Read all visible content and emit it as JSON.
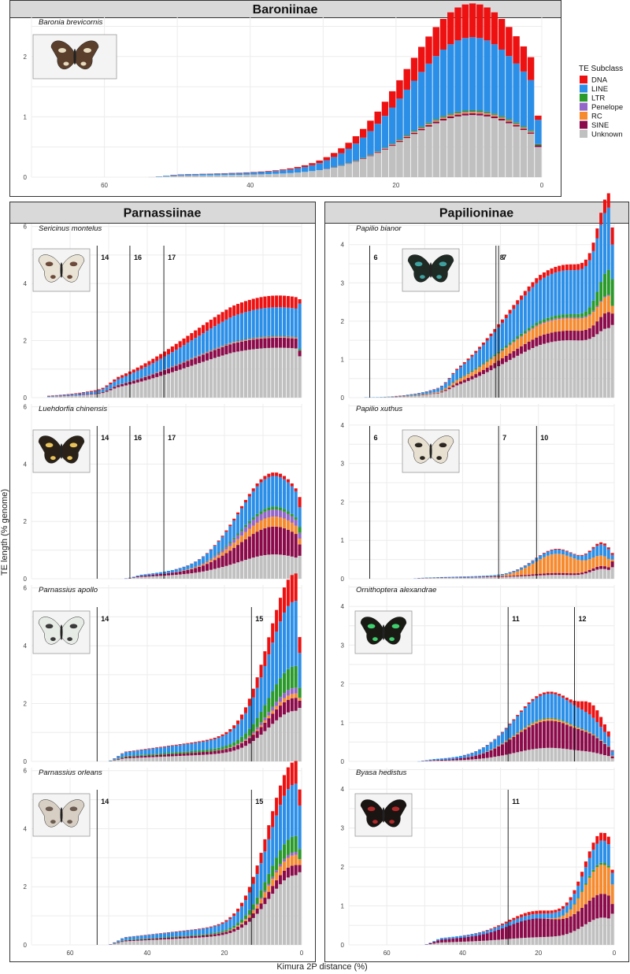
{
  "figure": {
    "ylabel": "TE length (% genome)",
    "xlabel": "Kimura 2P distance (%)"
  },
  "legend": {
    "title": "TE Subclass",
    "items": [
      {
        "name": "DNA",
        "color": "#ee1111"
      },
      {
        "name": "LINE",
        "color": "#2b8fe8"
      },
      {
        "name": "LTR",
        "color": "#2a9a2a"
      },
      {
        "name": "Penelope",
        "color": "#9366c9"
      },
      {
        "name": "RC",
        "color": "#f58a2f"
      },
      {
        "name": "SINE",
        "color": "#8b0a4a"
      },
      {
        "name": "Unknown",
        "color": "#c0c0c0"
      }
    ]
  },
  "groups": [
    {
      "title": "Baroniinae"
    },
    {
      "title": "Parnassiinae"
    },
    {
      "title": "Papilioninae"
    }
  ],
  "chart_data": [
    {
      "type": "bar",
      "stacked": true,
      "species": "Baronia brevicornis",
      "x_axis": "reversed",
      "xlim": [
        70,
        0
      ],
      "xticks": [
        60,
        40,
        20,
        0
      ],
      "ylim": [
        0,
        2.65
      ],
      "yticks": [
        0,
        1,
        2
      ],
      "grid": true,
      "divergence_lines": [],
      "peaks": [
        {
          "at": 9.5,
          "width": 9,
          "DNA": 0.55,
          "LINE": 1.15,
          "LTR": 0.02,
          "Penelope": 0.01,
          "RC": 0.02,
          "SINE": 0.03,
          "Unknown": 0.95
        }
      ],
      "plateaus": [
        {
          "from": 50,
          "to": 14,
          "DNA": 0.01,
          "LINE": 0.06,
          "Unknown": 0.08
        }
      ],
      "last_bar": {
        "DNA": 0.07,
        "LINE": 0.4,
        "LTR": 0.02,
        "SINE": 0.03,
        "Unknown": 0.5
      }
    },
    {
      "type": "bar",
      "stacked": true,
      "species": "Sericinus montelus",
      "x_axis": "reversed",
      "xlim": [
        70,
        0
      ],
      "xticks": [
        60,
        40,
        20,
        0
      ],
      "ylim": [
        0,
        6.1
      ],
      "yticks": [
        0,
        2,
        4,
        6
      ],
      "grid": true,
      "divergence_lines": [
        {
          "x": 53,
          "label": "14"
        },
        {
          "x": 44.5,
          "label": "16"
        },
        {
          "x": 35.7,
          "label": "17"
        }
      ],
      "peaks": [
        {
          "at": 6,
          "width": 22,
          "DNA": 0.35,
          "LINE": 0.8,
          "LTR": 0.02,
          "Penelope": 0.03,
          "RC": 0.02,
          "SINE": 0.25,
          "Unknown": 1.25
        }
      ],
      "plateaus": [
        {
          "from": 48,
          "to": 18,
          "DNA": 0.06,
          "LINE": 0.2,
          "SINE": 0.1,
          "Unknown": 0.5
        }
      ],
      "last_bar": {
        "DNA": 0.15,
        "LINE": 1.6,
        "LTR": 0.05,
        "SINE": 0.2,
        "Unknown": 1.45
      }
    },
    {
      "type": "bar",
      "stacked": true,
      "species": "Papilio bianor",
      "x_axis": "reversed",
      "xlim": [
        70,
        0
      ],
      "xticks": [
        60,
        40,
        20,
        0
      ],
      "ylim": [
        0,
        4.55
      ],
      "yticks": [
        0,
        1,
        2,
        3,
        4
      ],
      "grid": true,
      "divergence_lines": [
        {
          "x": 64.5,
          "label": "6"
        },
        {
          "x": 31.2,
          "label": "8"
        },
        {
          "x": 30.5,
          "label": "7"
        }
      ],
      "peaks": [
        {
          "at": 12,
          "width": 16,
          "DNA": 0.12,
          "LINE": 0.85,
          "LTR": 0.08,
          "Penelope": 0.03,
          "RC": 0.22,
          "SINE": 0.15,
          "Unknown": 1.15
        },
        {
          "at": 1,
          "width": 3,
          "DNA": 0.25,
          "LINE": 0.65,
          "LTR": 0.6,
          "RC": 0.15,
          "SINE": 0.2,
          "Unknown": 0.55
        }
      ],
      "plateaus": [
        {
          "from": 42,
          "to": 20,
          "DNA": 0.03,
          "LINE": 0.3,
          "RC": 0.1,
          "SINE": 0.1,
          "Unknown": 0.35
        }
      ],
      "last_bar": {
        "DNA": 0.45,
        "LINE": 0.9,
        "LTR": 0.7,
        "RC": 0.2,
        "SINE": 0.3,
        "Unknown": 1.9
      }
    },
    {
      "type": "bar",
      "stacked": true,
      "species": "Luehdorfia chinensis",
      "x_axis": "reversed",
      "xlim": [
        70,
        0
      ],
      "xticks": [
        60,
        40,
        20,
        0
      ],
      "ylim": [
        0,
        6.1
      ],
      "yticks": [
        0,
        2,
        4,
        6
      ],
      "grid": true,
      "divergence_lines": [
        {
          "x": 53,
          "label": "14"
        },
        {
          "x": 44.5,
          "label": "16"
        },
        {
          "x": 35.7,
          "label": "17"
        }
      ],
      "peaks": [
        {
          "at": 7,
          "width": 9,
          "DNA": 0.12,
          "LINE": 0.95,
          "LTR": 0.1,
          "Penelope": 0.25,
          "RC": 0.35,
          "SINE": 0.85,
          "Unknown": 0.65
        }
      ],
      "plateaus": [
        {
          "from": 42,
          "to": 22,
          "LINE": 0.12,
          "SINE": 0.12,
          "Unknown": 0.2
        }
      ],
      "last_bar": {
        "DNA": 0.35,
        "LINE": 0.7,
        "LTR": 0.2,
        "Penelope": 0.2,
        "RC": 0.2,
        "SINE": 0.4,
        "Unknown": 0.8
      }
    },
    {
      "type": "bar",
      "stacked": true,
      "species": "Papilio xuthus",
      "x_axis": "reversed",
      "xlim": [
        70,
        0
      ],
      "xticks": [
        60,
        40,
        20,
        0
      ],
      "ylim": [
        0,
        4.55
      ],
      "yticks": [
        0,
        1,
        2,
        3,
        4
      ],
      "grid": true,
      "divergence_lines": [
        {
          "x": 64.5,
          "label": "6"
        },
        {
          "x": 30.5,
          "label": "7"
        },
        {
          "x": 20.5,
          "label": "10"
        }
      ],
      "peaks": [
        {
          "at": 15,
          "width": 6,
          "DNA": 0.02,
          "LINE": 0.08,
          "RC": 0.5,
          "SINE": 0.03,
          "Unknown": 0.05
        },
        {
          "at": 3,
          "width": 3,
          "DNA": 0.05,
          "LINE": 0.25,
          "RC": 0.2,
          "SINE": 0.05,
          "Unknown": 0.2
        }
      ],
      "plateaus": [
        {
          "from": 50,
          "to": 25,
          "LINE": 0.03,
          "SINE": 0.02,
          "Unknown": 0.05
        }
      ],
      "last_bar": {
        "DNA": 0.05,
        "LINE": 0.12,
        "RC": 0.05,
        "SINE": 0.15,
        "Unknown": 0.3
      }
    },
    {
      "type": "bar",
      "stacked": true,
      "species": "Parnassius apollo",
      "x_axis": "reversed",
      "xlim": [
        70,
        0
      ],
      "xticks": [
        60,
        40,
        20,
        0
      ],
      "ylim": [
        0,
        6.1
      ],
      "yticks": [
        0,
        2,
        4,
        6
      ],
      "grid": true,
      "divergence_lines": [
        {
          "x": 53,
          "label": "14"
        },
        {
          "x": 13,
          "label": "15"
        }
      ],
      "peaks": [
        {
          "at": 1.5,
          "width": 7,
          "DNA": 0.9,
          "LINE": 1.8,
          "LTR": 0.65,
          "Penelope": 0.2,
          "RC": 0.15,
          "SINE": 0.3,
          "Unknown": 1.4
        }
      ],
      "plateaus": [
        {
          "from": 46,
          "to": 4,
          "DNA": 0.05,
          "LINE": 0.45,
          "LTR": 0.1,
          "SINE": 0.15,
          "Unknown": 0.35
        }
      ],
      "last_bar": {
        "DNA": 0.55,
        "LINE": 1.2,
        "LTR": 0.35,
        "RC": 0.1,
        "SINE": 0.25,
        "Unknown": 1.85
      }
    },
    {
      "type": "bar",
      "stacked": true,
      "species": "Ornithoptera alexandrae",
      "x_axis": "reversed",
      "xlim": [
        70,
        0
      ],
      "xticks": [
        60,
        40,
        20,
        0
      ],
      "ylim": [
        0,
        4.55
      ],
      "yticks": [
        0,
        1,
        2,
        3,
        4
      ],
      "grid": true,
      "divergence_lines": [
        {
          "x": 28,
          "label": "11"
        },
        {
          "x": 10.5,
          "label": "12"
        }
      ],
      "peaks": [
        {
          "at": 17,
          "width": 9,
          "DNA": 0.05,
          "LINE": 0.55,
          "LTR": 0.02,
          "RC": 0.05,
          "SINE": 0.65,
          "Unknown": 0.3
        },
        {
          "at": 5.5,
          "width": 3,
          "DNA": 0.3,
          "LINE": 0.1,
          "SINE": 0.1,
          "Unknown": 0.05
        }
      ],
      "plateaus": [
        {
          "from": 48,
          "to": 22,
          "LINE": 0.08,
          "SINE": 0.05,
          "Unknown": 0.05
        }
      ],
      "last_bar": {
        "DNA": 0.02,
        "LINE": 0.12,
        "RC": 0.02,
        "SINE": 0.05,
        "Unknown": 0.08
      }
    },
    {
      "type": "bar",
      "stacked": true,
      "species": "Parnassius orleans",
      "x_axis": "reversed",
      "xlim": [
        70,
        0
      ],
      "xticks": [
        60,
        40,
        20,
        0
      ],
      "ylim": [
        0,
        6.1
      ],
      "yticks": [
        0,
        2,
        4,
        6
      ],
      "grid": true,
      "divergence_lines": [
        {
          "x": 53,
          "label": "14"
        },
        {
          "x": 13,
          "label": "15"
        }
      ],
      "peaks": [
        {
          "at": 1.5,
          "width": 7,
          "DNA": 0.75,
          "LINE": 1.5,
          "LTR": 0.5,
          "Penelope": 0.1,
          "RC": 0.35,
          "SINE": 0.25,
          "Unknown": 2.0
        }
      ],
      "plateaus": [
        {
          "from": 46,
          "to": 4,
          "DNA": 0.03,
          "LINE": 0.3,
          "LTR": 0.05,
          "SINE": 0.1,
          "Unknown": 0.4
        }
      ],
      "last_bar": {
        "DNA": 0.55,
        "LINE": 1.5,
        "LTR": 0.35,
        "RC": 0.2,
        "SINE": 0.25,
        "Unknown": 2.5
      }
    },
    {
      "type": "bar",
      "stacked": true,
      "species": "Byasa hedistus",
      "x_axis": "reversed",
      "xlim": [
        70,
        0
      ],
      "xticks": [
        60,
        40,
        20,
        0
      ],
      "ylim": [
        0,
        4.55
      ],
      "yticks": [
        0,
        1,
        2,
        3,
        4
      ],
      "grid": true,
      "divergence_lines": [
        {
          "x": 28,
          "label": "11"
        }
      ],
      "peaks": [
        {
          "at": 21,
          "width": 7,
          "DNA": 0.08,
          "LINE": 0.03,
          "SINE": 0.3,
          "Unknown": 0.05
        },
        {
          "at": 3,
          "width": 5,
          "DNA": 0.2,
          "LINE": 0.45,
          "LTR": 0.05,
          "RC": 0.75,
          "SINE": 0.35,
          "Unknown": 0.5
        }
      ],
      "plateaus": [
        {
          "from": 46,
          "to": 4,
          "LINE": 0.12,
          "SINE": 0.25,
          "Unknown": 0.2
        }
      ],
      "last_bar": {
        "DNA": 0.08,
        "LINE": 0.3,
        "RC": 0.5,
        "SINE": 0.25,
        "Unknown": 0.8
      }
    }
  ]
}
